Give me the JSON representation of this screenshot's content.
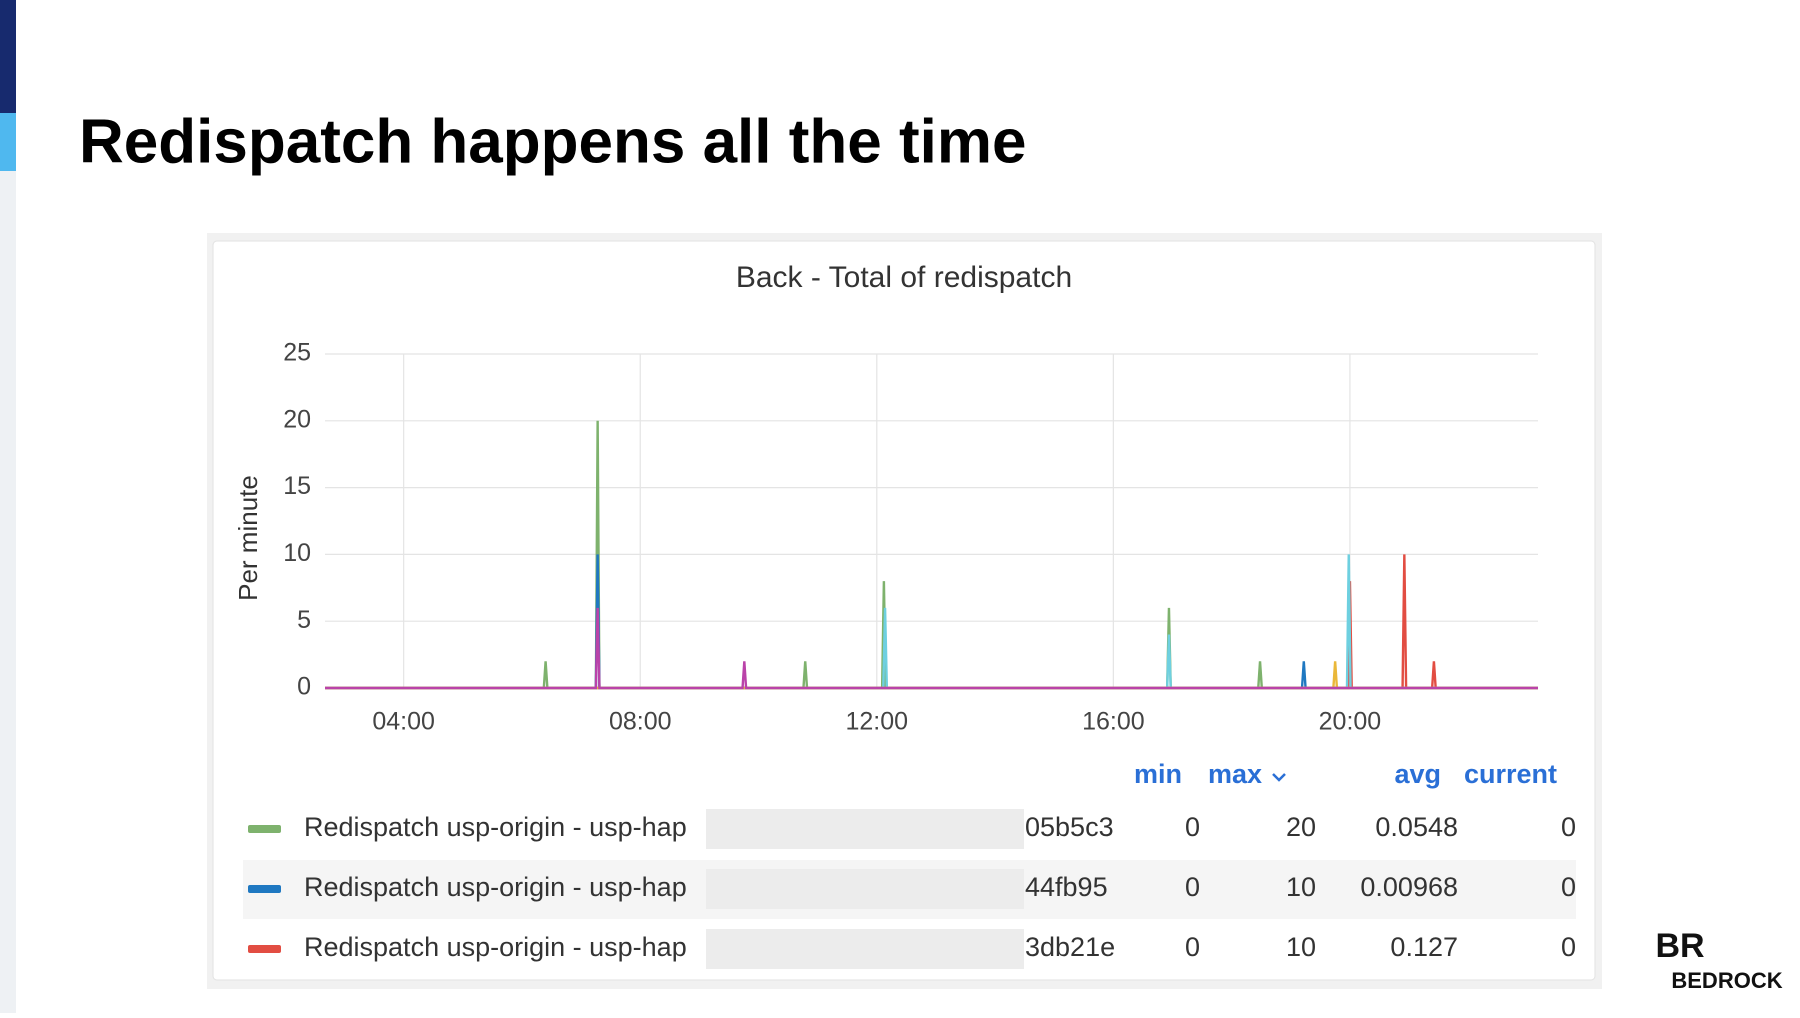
{
  "slide_title": "Redispatch happens all the time",
  "logo": {
    "mark": "BR",
    "text": "BEDROCK"
  },
  "chart_data": {
    "type": "line",
    "title": "Back - Total of redispatch",
    "y_label": "Per minute",
    "xlim": [
      2.67,
      23.18
    ],
    "xticks": [
      {
        "value": 4,
        "label": "04:00"
      },
      {
        "value": 8,
        "label": "08:00"
      },
      {
        "value": 12,
        "label": "12:00"
      },
      {
        "value": 16,
        "label": "16:00"
      },
      {
        "value": 20,
        "label": "20:00"
      }
    ],
    "ylim": [
      0,
      25
    ],
    "yticks": [
      0,
      5,
      10,
      15,
      20,
      25
    ],
    "grid": true,
    "legend_columns": [
      "min",
      "max",
      "avg",
      "current"
    ],
    "series": [
      {
        "name": "Redispatch usp-origin - usp-hap",
        "name_suffix": "05b5c3",
        "color": "#7eb26d",
        "stats": [
          0,
          20,
          0.0548,
          0
        ],
        "x": [
          2.67,
          6.37,
          6.4,
          6.43,
          7.25,
          7.28,
          7.31,
          10.76,
          10.79,
          10.82,
          12.09,
          12.12,
          12.15,
          16.91,
          16.94,
          16.97,
          18.45,
          18.48,
          18.51,
          23.18
        ],
        "values": [
          0,
          0,
          2,
          0,
          0,
          20,
          0,
          0,
          2,
          0,
          0,
          8,
          0,
          0,
          6,
          0,
          0,
          2,
          0,
          0
        ]
      },
      {
        "name": "Redispatch usp-origin - usp-hap",
        "name_suffix": "44fb95",
        "color": "#1f78c1",
        "stats": [
          0,
          10,
          0.00968,
          0
        ],
        "x": [
          2.67,
          7.25,
          7.28,
          7.31,
          19.19,
          19.22,
          19.25,
          23.18
        ],
        "values": [
          0,
          0,
          10,
          0,
          0,
          2,
          0,
          0
        ]
      },
      {
        "name": "Redispatch usp-origin - usp-hap",
        "name_suffix": "3db21e",
        "color": "#e24d42",
        "stats": [
          0,
          10,
          0.127,
          0
        ],
        "x": [
          2.67,
          19.97,
          20.0,
          20.03,
          20.89,
          20.92,
          20.95,
          21.39,
          21.42,
          21.45,
          23.18
        ],
        "values": [
          0,
          0,
          8,
          0,
          0,
          10,
          0,
          0,
          2,
          0,
          0
        ]
      },
      {
        "color": "#6ed0e0",
        "x": [
          2.67,
          12.11,
          12.14,
          12.17,
          16.91,
          16.94,
          16.97,
          19.95,
          19.98,
          20.01,
          23.18
        ],
        "values": [
          0,
          0,
          6,
          0,
          0,
          4,
          0,
          0,
          10,
          0,
          0
        ]
      },
      {
        "color": "#eab839",
        "x": [
          2.67,
          19.72,
          19.75,
          19.78,
          23.18
        ],
        "values": [
          0,
          0,
          2,
          0,
          0
        ]
      },
      {
        "color": "#ba43a9",
        "x": [
          2.67,
          7.25,
          7.28,
          7.31,
          9.73,
          9.76,
          9.79,
          23.18
        ],
        "values": [
          0,
          0,
          6,
          0,
          0,
          2,
          0,
          0
        ]
      }
    ]
  }
}
